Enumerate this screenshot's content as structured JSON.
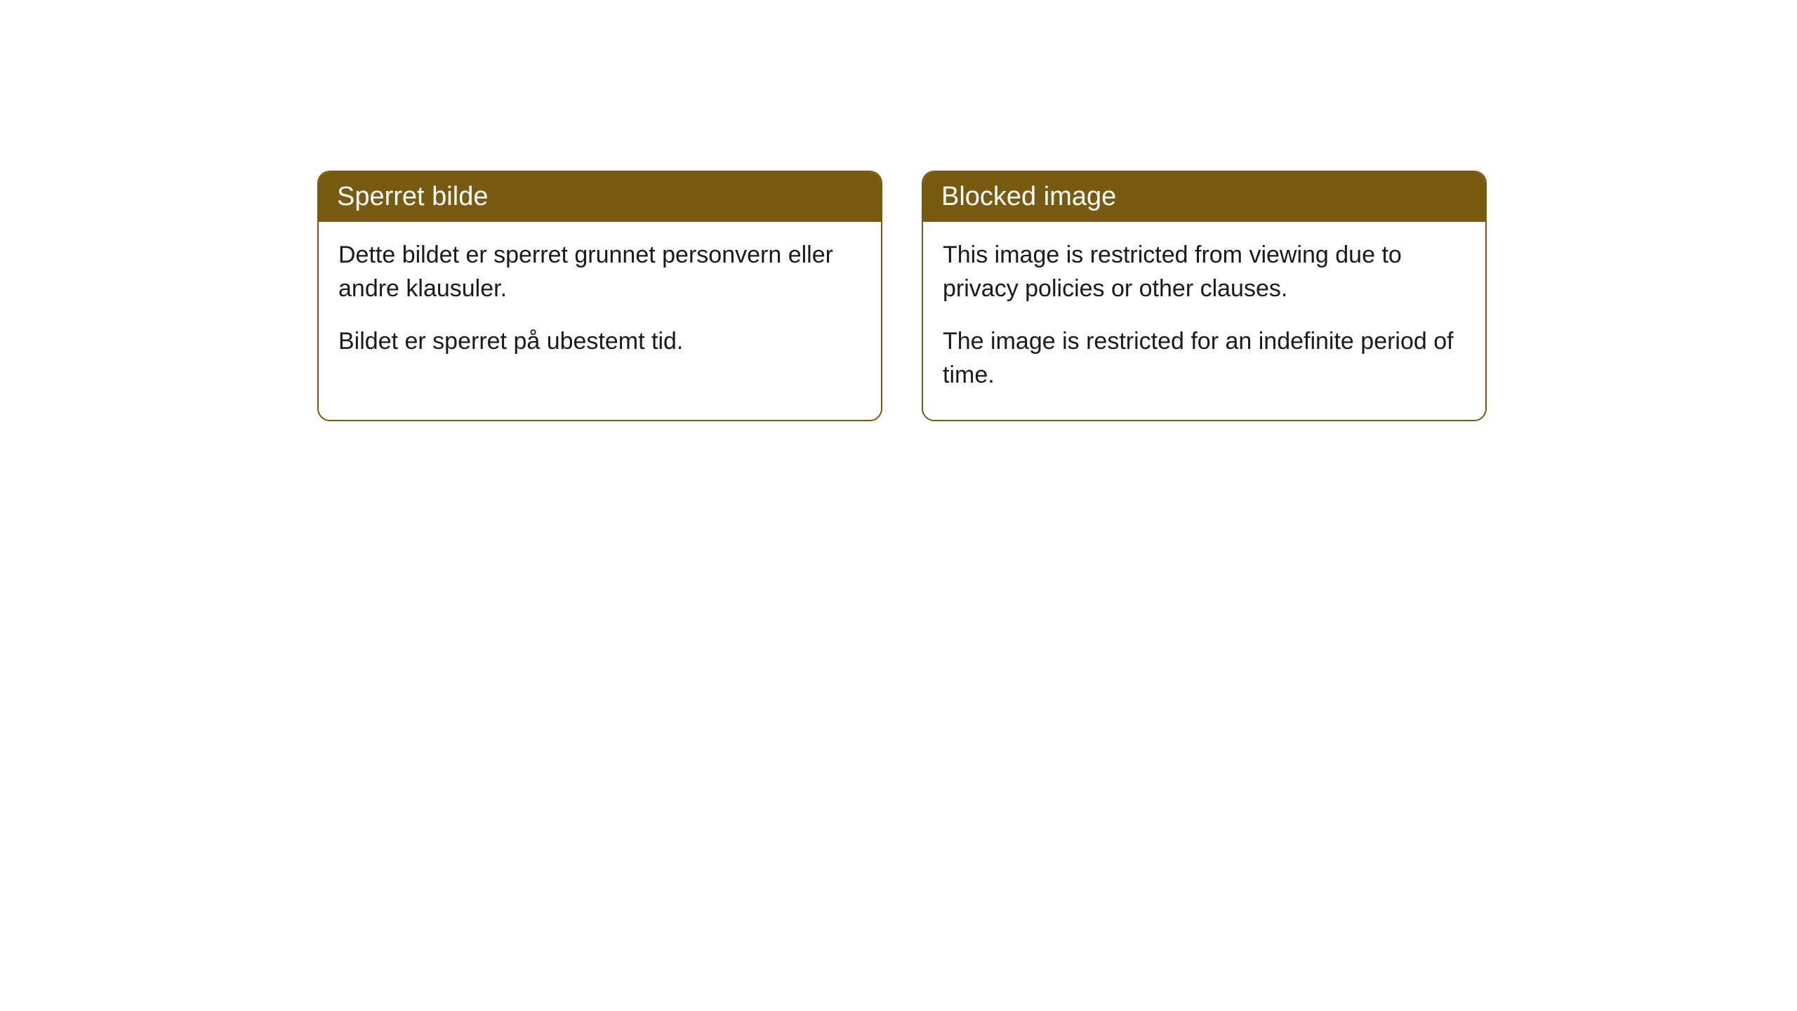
{
  "cards": [
    {
      "title": "Sperret bilde",
      "paragraph1": "Dette bildet er sperret grunnet personvern eller andre klausuler.",
      "paragraph2": "Bildet er sperret på ubestemt tid."
    },
    {
      "title": "Blocked image",
      "paragraph1": "This image is restricted from viewing due to privacy policies or other clauses.",
      "paragraph2": "The image is restricted for an indefinite period of time."
    }
  ],
  "styling": {
    "header_background": "#785a10",
    "header_text_color": "#ffffff",
    "border_color": "#785a10",
    "body_text_color": "#1a1a1a",
    "card_background": "#ffffff",
    "page_background": "#ffffff",
    "border_radius": 18,
    "header_fontsize": 38,
    "body_fontsize": 34
  }
}
